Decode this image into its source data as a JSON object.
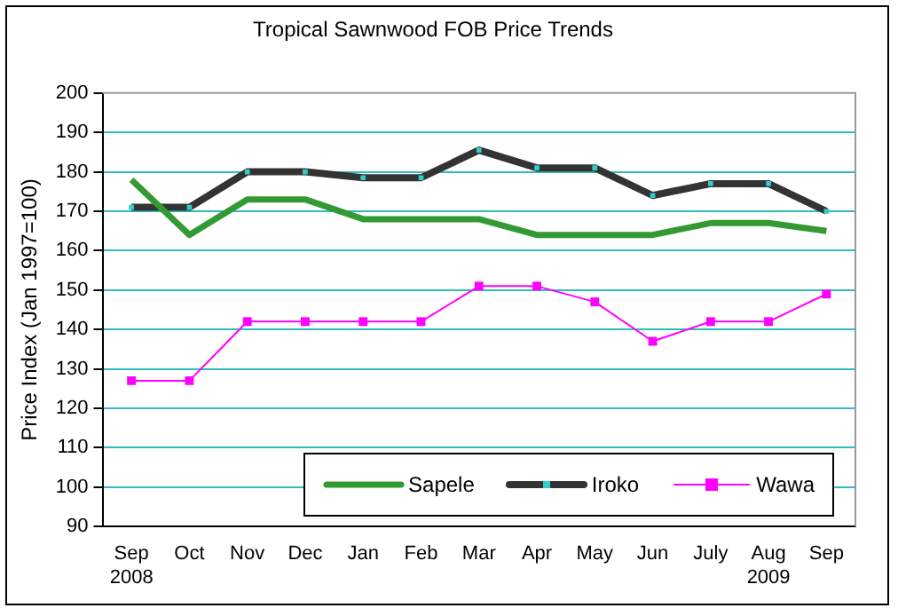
{
  "chart_data": {
    "type": "line",
    "title": "Tropical Sawnwood FOB Price Trends",
    "ylabel": "Price Index (Jan 1997=100)",
    "categories": [
      "Sep\n2008",
      "Oct",
      "Nov",
      "Dec",
      "Jan",
      "Feb",
      "Mar",
      "Apr",
      "May",
      "Jun",
      "July",
      "Aug\n2009",
      "Sep"
    ],
    "series": [
      {
        "name": "Sapele",
        "color": "#339933",
        "marker": "none",
        "values": [
          178,
          164,
          173,
          173,
          168,
          168,
          168,
          164,
          164,
          164,
          167,
          167,
          165
        ]
      },
      {
        "name": "Iroko",
        "color": "#333333",
        "marker": "square",
        "values": [
          171,
          171,
          180,
          180,
          178.5,
          178.5,
          185.5,
          181,
          181,
          174,
          177,
          177,
          170
        ]
      },
      {
        "name": "Wawa",
        "color": "#ff00ff",
        "marker": "square",
        "values": [
          127,
          127,
          142,
          142,
          142,
          142,
          151,
          151,
          147,
          137,
          142,
          142,
          149
        ]
      }
    ],
    "ylim": [
      90,
      200
    ],
    "yticks": [
      90,
      100,
      110,
      120,
      130,
      140,
      150,
      160,
      170,
      180,
      190,
      200
    ],
    "grid": "y",
    "legend": "bottom right"
  }
}
